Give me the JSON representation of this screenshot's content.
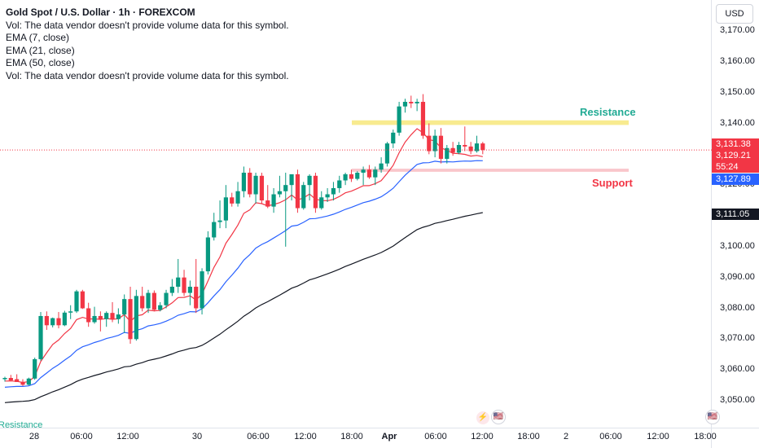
{
  "legend": {
    "title": "Gold Spot / U.S. Dollar · 1h · FOREXCOM",
    "lines": [
      "Vol: The data vendor doesn't provide volume data for this symbol.",
      "EMA (7, close)",
      "EMA (21, close)",
      "EMA (50, close)",
      "Vol: The data vendor doesn't provide volume data for this symbol."
    ]
  },
  "currency_button": "USD",
  "price_tags": {
    "close": "3,131.38",
    "ema7": "3,129.21",
    "countdown": "55:24",
    "ema21": "3,127.89",
    "ema50": "3,111.05"
  },
  "zones": {
    "resistance_label": "Resistance",
    "support_label": "Support",
    "bottom_left_label": "Resistance"
  },
  "events": [
    {
      "icon": "lightning-icon",
      "glyph": "⚡"
    },
    {
      "icon": "us-flag-icon",
      "glyph": "🇺🇸"
    }
  ],
  "colors": {
    "up": "#089981",
    "down": "#f23645",
    "ema7": "#f23645",
    "ema21": "#2962ff",
    "ema50": "#131722",
    "resistance_zone": "#f5e46a",
    "support_zone": "#f7b8be",
    "resistance_text": "#22ab94",
    "support_text": "#f23645"
  },
  "chart_data": {
    "type": "candlestick",
    "symbol": "Gold Spot / U.S. Dollar",
    "interval": "1h",
    "y_axis": {
      "ticks": [
        "3,050.00",
        "3,060.00",
        "3,070.00",
        "3,080.00",
        "3,090.00",
        "3,100.00",
        "3,110.00",
        "3,120.00",
        "3,130.00",
        "3,140.00",
        "3,150.00",
        "3,160.00",
        "3,170.00"
      ],
      "tick_values": [
        3050,
        3060,
        3070,
        3080,
        3090,
        3100,
        3110,
        3120,
        3130,
        3140,
        3150,
        3160,
        3170
      ],
      "range": [
        3043,
        3176
      ]
    },
    "x_axis": {
      "ticks": [
        "28",
        "06:00",
        "12:00",
        "30",
        "06:00",
        "12:00",
        "18:00",
        "Apr",
        "06:00",
        "12:00",
        "18:00",
        "2",
        "06:00",
        "12:00",
        "18:00"
      ]
    },
    "candles": [
      [
        3057.0,
        3057.8,
        3056.2,
        3057.4
      ],
      [
        3057.4,
        3058.4,
        3056.8,
        3056.6
      ],
      [
        3057.0,
        3058.6,
        3056.5,
        3056.1
      ],
      [
        3056.1,
        3057.0,
        3054.8,
        3055.2
      ],
      [
        3055.2,
        3057.5,
        3055.0,
        3057.2
      ],
      [
        3057.2,
        3064.0,
        3056.8,
        3063.5
      ],
      [
        3063.5,
        3078.8,
        3063.0,
        3077.5
      ],
      [
        3077.5,
        3079.0,
        3073.0,
        3074.5
      ],
      [
        3074.5,
        3077.0,
        3073.8,
        3076.8
      ],
      [
        3076.8,
        3078.8,
        3073.5,
        3074.5
      ],
      [
        3074.5,
        3079.2,
        3074.2,
        3078.6
      ],
      [
        3078.6,
        3081.0,
        3076.5,
        3079.0
      ],
      [
        3079.0,
        3086.0,
        3078.5,
        3085.5
      ],
      [
        3085.5,
        3086.0,
        3079.8,
        3080.0
      ],
      [
        3080.0,
        3081.8,
        3074.0,
        3075.5
      ],
      [
        3075.5,
        3080.5,
        3075.0,
        3077.5
      ],
      [
        3077.5,
        3079.0,
        3072.5,
        3076.5
      ],
      [
        3076.5,
        3079.0,
        3074.0,
        3078.5
      ],
      [
        3078.5,
        3082.0,
        3075.5,
        3076.5
      ],
      [
        3076.5,
        3080.0,
        3075.0,
        3078.0
      ],
      [
        3078.0,
        3084.5,
        3072.0,
        3083.0
      ],
      [
        3083.0,
        3087.0,
        3068.5,
        3070.0
      ],
      [
        3070.0,
        3086.0,
        3069.5,
        3084.0
      ],
      [
        3084.0,
        3087.0,
        3079.0,
        3080.0
      ],
      [
        3080.0,
        3086.0,
        3078.5,
        3085.0
      ],
      [
        3085.0,
        3085.8,
        3079.0,
        3079.5
      ],
      [
        3079.5,
        3082.0,
        3079.0,
        3081.0
      ],
      [
        3081.0,
        3086.0,
        3080.0,
        3085.0
      ],
      [
        3085.0,
        3089.5,
        3084.0,
        3087.0
      ],
      [
        3087.0,
        3096.0,
        3085.0,
        3090.0
      ],
      [
        3090.0,
        3092.5,
        3084.0,
        3085.0
      ],
      [
        3085.0,
        3089.0,
        3081.0,
        3087.0
      ],
      [
        3087.0,
        3096.0,
        3078.5,
        3080.0
      ],
      [
        3080.0,
        3093.0,
        3078.0,
        3092.0
      ],
      [
        3092.0,
        3105.0,
        3091.0,
        3103.0
      ],
      [
        3103.0,
        3111.0,
        3102.0,
        3108.0
      ],
      [
        3108.0,
        3115.0,
        3106.0,
        3108.5
      ],
      [
        3108.5,
        3120.0,
        3106.0,
        3116.0
      ],
      [
        3116.0,
        3117.5,
        3113.0,
        3114.0
      ],
      [
        3114.0,
        3121.0,
        3113.0,
        3118.0
      ],
      [
        3118.0,
        3126.0,
        3116.0,
        3124.0
      ],
      [
        3124.0,
        3125.5,
        3116.0,
        3117.0
      ],
      [
        3117.0,
        3124.0,
        3114.0,
        3123.0
      ],
      [
        3123.0,
        3124.0,
        3114.0,
        3115.0
      ],
      [
        3115.0,
        3120.0,
        3112.5,
        3113.0
      ],
      [
        3113.0,
        3119.0,
        3111.0,
        3117.0
      ],
      [
        3117.0,
        3123.0,
        3116.0,
        3118.0
      ],
      [
        3118.0,
        3124.0,
        3100.0,
        3120.0
      ],
      [
        3120.0,
        3123.0,
        3115.0,
        3123.5
      ],
      [
        3123.5,
        3125.0,
        3111.0,
        3112.5
      ],
      [
        3112.5,
        3121.0,
        3112.0,
        3120.0
      ],
      [
        3120.0,
        3123.5,
        3115.0,
        3123.0
      ],
      [
        3123.0,
        3124.0,
        3111.0,
        3112.5
      ],
      [
        3112.5,
        3118.0,
        3112.0,
        3116.0
      ],
      [
        3116.0,
        3119.0,
        3114.5,
        3117.0
      ],
      [
        3117.0,
        3121.0,
        3115.0,
        3119.0
      ],
      [
        3119.0,
        3123.0,
        3117.5,
        3121.5
      ],
      [
        3121.5,
        3124.0,
        3120.0,
        3123.5
      ],
      [
        3123.5,
        3125.0,
        3121.0,
        3122.0
      ],
      [
        3122.0,
        3124.5,
        3121.5,
        3124.0
      ],
      [
        3124.0,
        3126.0,
        3120.0,
        3125.0
      ],
      [
        3125.0,
        3126.5,
        3122.0,
        3122.5
      ],
      [
        3122.5,
        3126.0,
        3120.0,
        3125.0
      ],
      [
        3125.0,
        3129.0,
        3124.0,
        3127.0
      ],
      [
        3127.0,
        3134.0,
        3126.0,
        3133.5
      ],
      [
        3133.5,
        3138.0,
        3132.0,
        3137.0
      ],
      [
        3137.0,
        3147.0,
        3136.0,
        3145.5
      ],
      [
        3145.5,
        3148.0,
        3143.5,
        3147.0
      ],
      [
        3147.0,
        3149.0,
        3145.0,
        3146.5
      ],
      [
        3146.5,
        3148.0,
        3144.0,
        3147.0
      ],
      [
        3147.0,
        3149.5,
        3135.0,
        3136.0
      ],
      [
        3136.0,
        3140.0,
        3130.0,
        3131.0
      ],
      [
        3131.0,
        3138.0,
        3129.0,
        3136.0
      ],
      [
        3136.0,
        3138.5,
        3127.0,
        3128.5
      ],
      [
        3128.5,
        3133.0,
        3127.0,
        3132.0
      ],
      [
        3132.0,
        3134.0,
        3129.5,
        3130.5
      ],
      [
        3130.5,
        3134.0,
        3130.0,
        3133.0
      ],
      [
        3133.0,
        3139.0,
        3131.0,
        3132.5
      ],
      [
        3132.5,
        3134.0,
        3130.0,
        3131.0
      ],
      [
        3131.0,
        3136.0,
        3130.5,
        3133.5
      ],
      [
        3133.5,
        3134.0,
        3130.0,
        3131.38
      ]
    ],
    "ema7_end": 3129.21,
    "ema21_end": 3127.89,
    "ema50_end": 3111.05,
    "resistance_zone": [
      3139.5,
      3141.0
    ],
    "support_zone": [
      3124.3,
      3125.3
    ],
    "last_price": 3131.38
  }
}
